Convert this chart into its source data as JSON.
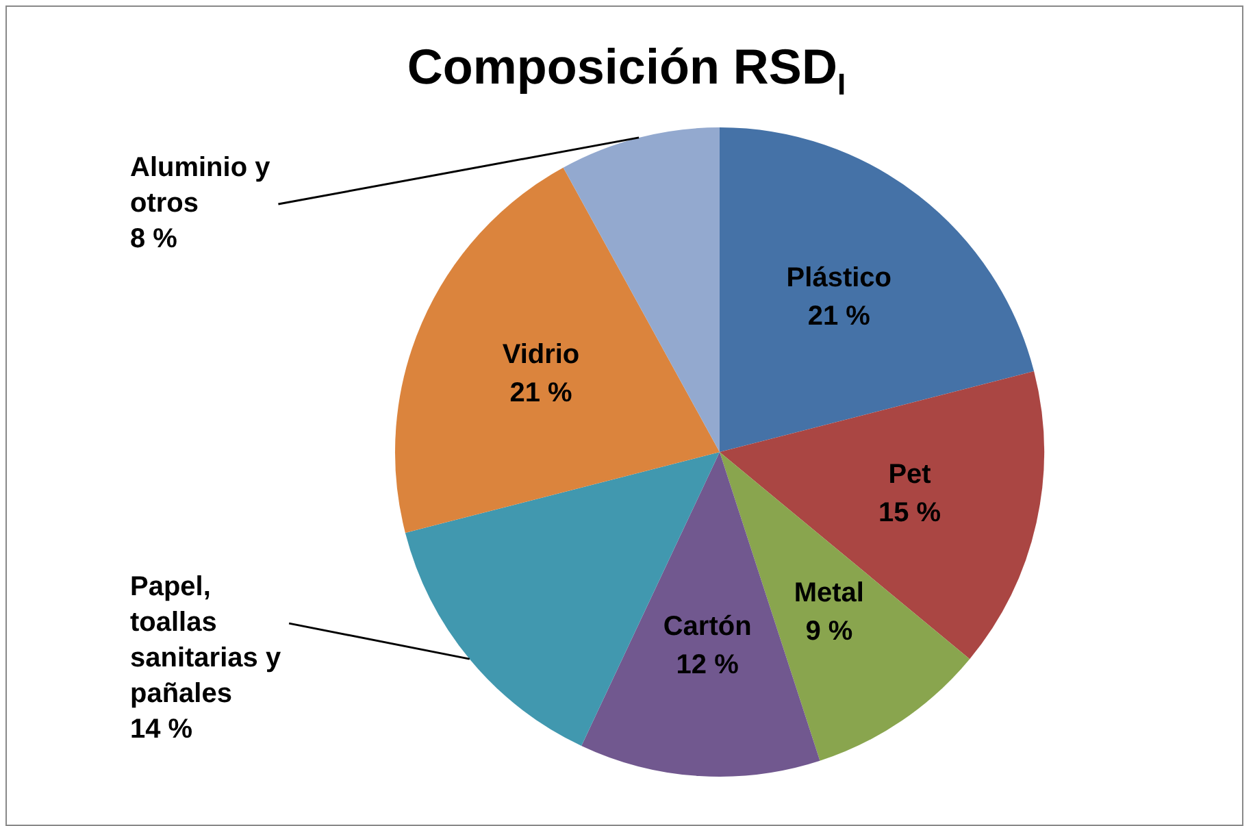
{
  "chart_data": {
    "type": "pie",
    "title": "Composición RSD$_{I}$",
    "categories": [
      "Plástico",
      "Pet",
      "Metal",
      "Cartón",
      "Papel, toallas sanitarias y pañales",
      "Vidrio",
      "Aluminio y otros"
    ],
    "values": [
      21,
      15,
      9,
      12,
      14,
      21,
      8
    ],
    "value_labels": [
      "21 %",
      "15 %",
      "9 %",
      "12 %",
      "14 %",
      "21 %",
      "8 %"
    ],
    "colors": [
      "#4572a7",
      "#aa4643",
      "#89a54e",
      "#71588f",
      "#4198af",
      "#db843d",
      "#93a9cf"
    ],
    "legend": false
  }
}
